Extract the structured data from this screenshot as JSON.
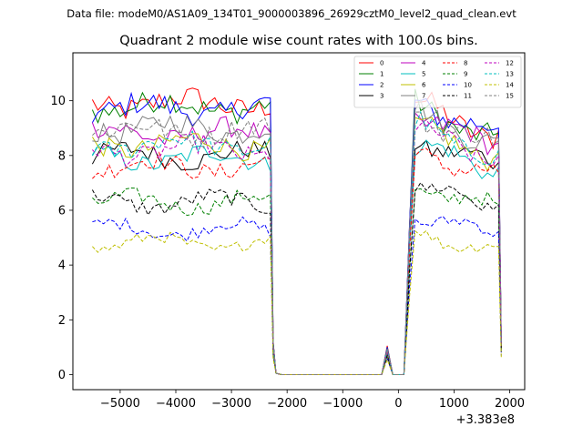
{
  "chart_data": {
    "type": "line",
    "suptitle": "Data file: modeM0/AS1A09_134T01_9000003896_26929cztM0_level2_quad_clean.evt",
    "title": "Quadrant 2 module wise count rates with 100.0s bins.",
    "xlabel": "",
    "ylabel": "",
    "x_offset_label": "+3.383e8",
    "xlim": [
      -5850,
      2270
    ],
    "ylim": [
      -0.55,
      11.75
    ],
    "xticks": [
      -5000,
      -4000,
      -3000,
      -2000,
      -1000,
      0,
      1000,
      2000
    ],
    "xtick_labels": [
      "−5000",
      "−4000",
      "−3000",
      "−2000",
      "−1000",
      "0",
      "1000",
      "2000"
    ],
    "yticks": [
      0,
      2,
      4,
      6,
      8,
      10
    ],
    "ytick_labels": [
      "0",
      "2",
      "4",
      "6",
      "8",
      "10"
    ],
    "grid": false,
    "legend_position": "top-right",
    "segments": [
      {
        "x_start": -5500,
        "x_end": -2300,
        "step": 100
      },
      {
        "x_start": -2200,
        "x_end": -400,
        "step": 100,
        "value": 0
      },
      {
        "x_start": -300,
        "x_end": 100,
        "step": 100,
        "dip_pattern": "spike"
      },
      {
        "x_start": 200,
        "x_end": 1800,
        "step": 100
      },
      {
        "x_start": 1850,
        "x_end": 1850,
        "step": 0,
        "value_fraction": 0.12
      }
    ],
    "series": [
      {
        "name": "0",
        "color": "#ff0000",
        "dash": "solid",
        "level": 9.9,
        "level_after": 9.9,
        "spike": 1.05
      },
      {
        "name": "1",
        "color": "#008000",
        "dash": "solid",
        "level": 9.8,
        "level_after": 9.8,
        "spike": 1.0
      },
      {
        "name": "2",
        "color": "#0000ff",
        "dash": "solid",
        "level": 9.7,
        "level_after": 10.0,
        "spike": 1.0
      },
      {
        "name": "3",
        "color": "#000000",
        "dash": "solid",
        "level": 8.0,
        "level_after": 8.6,
        "spike": 0.85
      },
      {
        "name": "4",
        "color": "#bf00bf",
        "dash": "solid",
        "level": 8.8,
        "level_after": 9.4,
        "spike": 0.9
      },
      {
        "name": "5",
        "color": "#00bfbf",
        "dash": "solid",
        "level": 7.9,
        "level_after": 8.4,
        "spike": 0.85
      },
      {
        "name": "6",
        "color": "#bfbf00",
        "dash": "solid",
        "level": 8.4,
        "level_after": 9.0,
        "spike": 0.9
      },
      {
        "name": "7",
        "color": "#808080",
        "dash": "solid",
        "level": 9.0,
        "level_after": 9.6,
        "spike": 0.95
      },
      {
        "name": "8",
        "color": "#ff0000",
        "dash": "dashed",
        "level": 7.6,
        "level_after": 8.2,
        "spike": 0.8
      },
      {
        "name": "9",
        "color": "#008000",
        "dash": "dashed",
        "level": 6.3,
        "level_after": 6.9,
        "spike": 0.7
      },
      {
        "name": "10",
        "color": "#0000ff",
        "dash": "dashed",
        "level": 5.3,
        "level_after": 5.8,
        "spike": 0.6
      },
      {
        "name": "11",
        "color": "#000000",
        "dash": "dashed",
        "level": 6.3,
        "level_after": 6.9,
        "spike": 0.7
      },
      {
        "name": "12",
        "color": "#bf00bf",
        "dash": "dashed",
        "level": 8.2,
        "level_after": 8.9,
        "spike": 0.85
      },
      {
        "name": "13",
        "color": "#00bfbf",
        "dash": "dashed",
        "level": 8.4,
        "level_after": 9.1,
        "spike": 0.9
      },
      {
        "name": "14",
        "color": "#bfbf00",
        "dash": "dashed",
        "level": 4.8,
        "level_after": 5.2,
        "spike": 0.55
      },
      {
        "name": "15",
        "color": "#808080",
        "dash": "dashed",
        "level": 8.9,
        "level_after": 9.5,
        "spike": 0.9
      }
    ]
  }
}
